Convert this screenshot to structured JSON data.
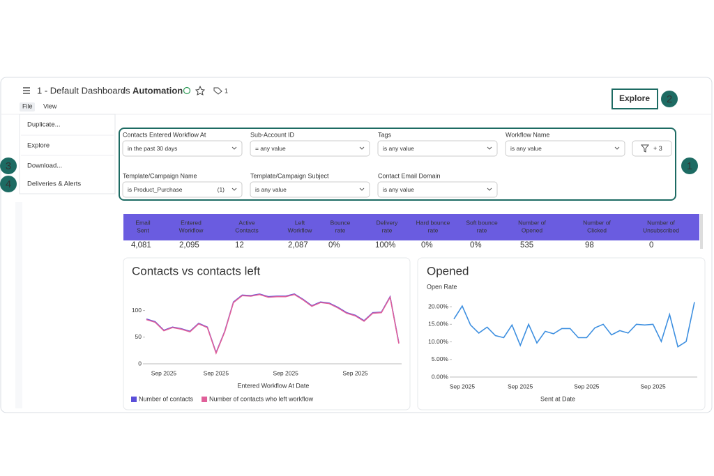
{
  "header": {
    "breadcrumb": "1 - Default Dashboards",
    "separator": "/",
    "title": "Automation",
    "tag_count": "1",
    "menus": [
      "File",
      "View"
    ],
    "explore": "Explore"
  },
  "file_menu": [
    "Duplicate...",
    "Explore",
    "Download...",
    "Deliveries & Alerts"
  ],
  "callouts": [
    "1",
    "2",
    "3",
    "4"
  ],
  "filters": [
    {
      "label": "Contacts Entered Workflow At",
      "value": "in the past 30 days"
    },
    {
      "label": "Sub-Account ID",
      "value": "= any value"
    },
    {
      "label": "Tags",
      "value": "is any value"
    },
    {
      "label": "Workflow Name",
      "value": "is any value"
    },
    {
      "label": "Template/Campaign Name",
      "value": "is Product_Purchase",
      "count": "(1)"
    },
    {
      "label": "Template/Campaign Subject",
      "value": "is any value"
    },
    {
      "label": "Contact Email Domain",
      "value": "is any value"
    }
  ],
  "more_filters": "+ 3",
  "metrics": {
    "columns": [
      [
        "Email",
        "Sent"
      ],
      [
        "Entered",
        "Workflow"
      ],
      [
        "Active",
        "Contacts"
      ],
      [
        "Left",
        "Workflow"
      ],
      [
        "Bounce",
        "rate"
      ],
      [
        "Delivery",
        "rate"
      ],
      [
        "Hard bounce",
        "rate"
      ],
      [
        "Soft bounce",
        "rate"
      ],
      [
        "Number of",
        "Opened"
      ],
      [
        "Number of",
        "Clicked"
      ],
      [
        "Number of",
        "Unsubscribed"
      ]
    ],
    "values": [
      "4,081",
      "2,095",
      "12",
      "2,087",
      "0%",
      "100%",
      "0%",
      "0%",
      "535",
      "98",
      "0"
    ]
  },
  "chart_data": [
    {
      "type": "line",
      "title": "Contacts vs contacts left",
      "x_label": "Entered Workflow At Date",
      "categories": [
        null,
        null,
        "Sep 2025",
        null,
        null,
        null,
        null,
        null,
        "Sep 2025",
        null,
        null,
        null,
        null,
        null,
        null,
        null,
        "Sep 2025",
        null,
        null,
        null,
        null,
        null,
        null,
        null,
        "Sep 2025",
        null,
        null,
        null,
        null,
        null
      ],
      "series": [
        {
          "name": "Number of contacts",
          "color": "#5b4fd9",
          "values": [
            84,
            79,
            63,
            69,
            66,
            61,
            76,
            69,
            21,
            61,
            116,
            129,
            128,
            131,
            126,
            127,
            127,
            131,
            121,
            109,
            116,
            114,
            106,
            96,
            91,
            81,
            96,
            97,
            126,
            39
          ]
        },
        {
          "name": "Number of contacts who left workflow",
          "color": "#e0609a",
          "values": [
            83,
            78,
            62,
            68,
            65,
            60,
            75,
            68,
            20,
            60,
            115,
            128,
            127,
            130,
            125,
            126,
            126,
            130,
            120,
            108,
            115,
            113,
            105,
            95,
            90,
            80,
            95,
            96,
            125,
            38
          ]
        }
      ],
      "ylim": [
        0,
        140
      ],
      "yticks": [
        0,
        50,
        100
      ]
    },
    {
      "type": "line",
      "title": "Opened",
      "subtitle": "Open Rate",
      "x_label": "Sent at Date",
      "categories": [
        null,
        "Sep 2025",
        null,
        null,
        null,
        null,
        null,
        null,
        "Sep 2025",
        null,
        null,
        null,
        null,
        null,
        null,
        null,
        "Sep 2025",
        null,
        null,
        null,
        null,
        null,
        null,
        null,
        "Sep 2025",
        null,
        null,
        null,
        null,
        null
      ],
      "series": [
        {
          "name": "Open Rate",
          "color": "#3d8fe0",
          "values": [
            16.5,
            20.2,
            14.8,
            12.5,
            14.2,
            11.8,
            11.2,
            14.8,
            9.0,
            15.0,
            9.7,
            13.0,
            12.3,
            13.8,
            13.8,
            11.2,
            11.2,
            14.0,
            15.0,
            12.0,
            13.2,
            12.5,
            15.0,
            14.8,
            15.0,
            10.1,
            17.8,
            8.6,
            10.1,
            21.3
          ]
        }
      ],
      "ylim": [
        0,
        22
      ],
      "yticks": [
        {
          "value": 0,
          "label": "0.00%"
        },
        {
          "value": 5,
          "label": "5.00%"
        },
        {
          "value": 10,
          "label": "10.00%"
        },
        {
          "value": 15,
          "label": "15.00%"
        },
        {
          "value": 20,
          "label": "20.00%"
        }
      ]
    }
  ]
}
